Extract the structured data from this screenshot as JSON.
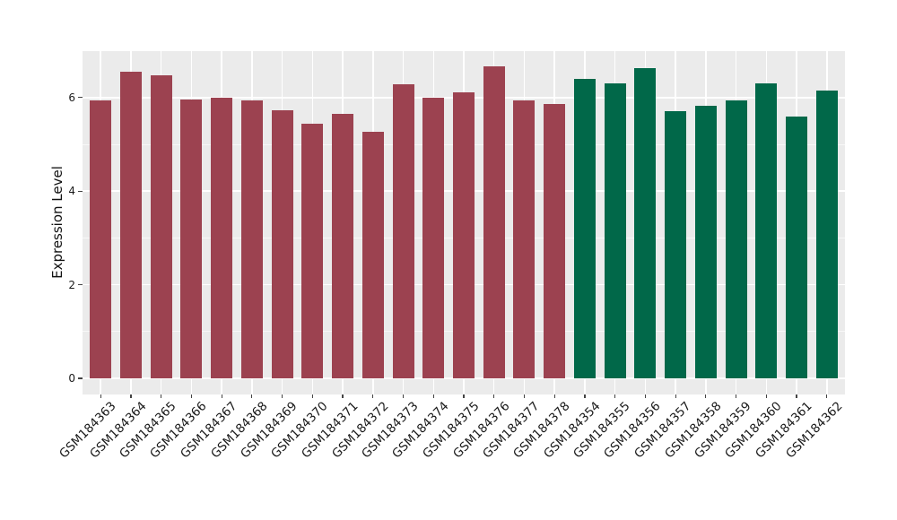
{
  "chart_data": {
    "type": "bar",
    "title": "",
    "xlabel": "",
    "ylabel": "Expression Level",
    "ylim": [
      0,
      7
    ],
    "yticks": [
      0,
      2,
      4,
      6
    ],
    "yticks_minor": [
      1,
      3,
      5
    ],
    "grid": true,
    "legend_position": "none",
    "panel_bg": "#EBEBEB",
    "grid_color": "#FFFFFF",
    "text_color": "#1a1a1a",
    "tick_color": "#444444",
    "categories": [
      "GSM184363",
      "GSM184364",
      "GSM184365",
      "GSM184366",
      "GSM184367",
      "GSM184368",
      "GSM184369",
      "GSM184370",
      "GSM184371",
      "GSM184372",
      "GSM184373",
      "GSM184374",
      "GSM184375",
      "GSM184376",
      "GSM184377",
      "GSM184378",
      "GSM184354",
      "GSM184355",
      "GSM184356",
      "GSM184357",
      "GSM184358",
      "GSM184359",
      "GSM184360",
      "GSM184361",
      "GSM184362"
    ],
    "values": [
      5.94,
      6.55,
      6.47,
      5.96,
      6.0,
      5.94,
      5.72,
      5.44,
      5.66,
      5.27,
      6.29,
      5.99,
      6.12,
      6.67,
      5.93,
      5.86,
      6.39,
      6.31,
      6.63,
      5.71,
      5.82,
      5.93,
      6.3,
      5.59,
      6.15
    ],
    "colors": [
      "#9C4250",
      "#9C4250",
      "#9C4250",
      "#9C4250",
      "#9C4250",
      "#9C4250",
      "#9C4250",
      "#9C4250",
      "#9C4250",
      "#9C4250",
      "#9C4250",
      "#9C4250",
      "#9C4250",
      "#9C4250",
      "#9C4250",
      "#9C4250",
      "#016849",
      "#016849",
      "#016849",
      "#016849",
      "#016849",
      "#016849",
      "#016849",
      "#016849",
      "#016849"
    ],
    "groups": [
      {
        "labels": "GSM184363-GSM184378",
        "color": "#9C4250",
        "count": 16
      },
      {
        "labels": "GSM184354-GSM184362",
        "color": "#016849",
        "count": 9
      }
    ]
  }
}
